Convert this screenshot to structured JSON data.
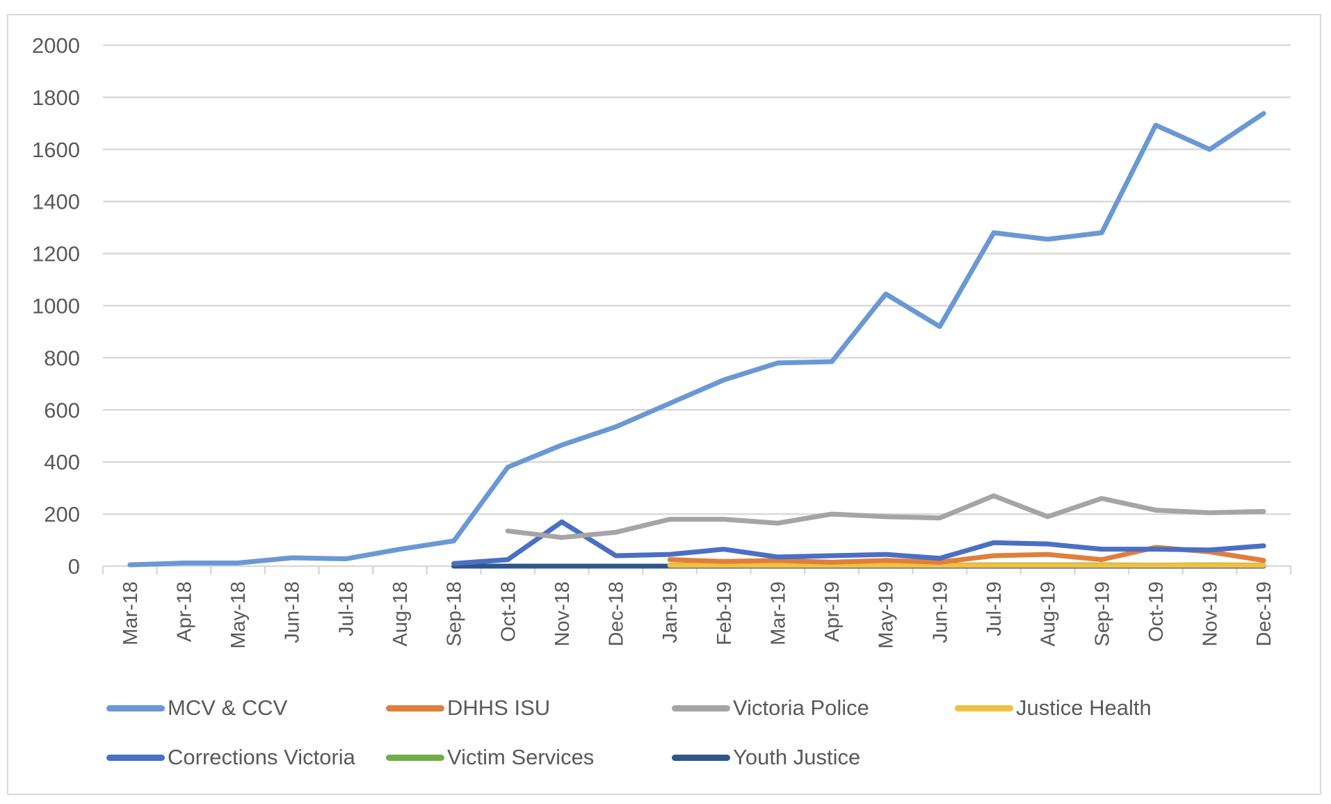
{
  "chart_data": {
    "type": "line",
    "title": "",
    "xlabel": "",
    "ylabel": "",
    "ylim": [
      0,
      2000
    ],
    "yticks": [
      "0",
      "200",
      "400",
      "600",
      "800",
      "1000",
      "1200",
      "1400",
      "1600",
      "1800",
      "2000"
    ],
    "grid": true,
    "legend_position": "bottom",
    "categories": [
      "Mar-18",
      "Apr-18",
      "May-18",
      "Jun-18",
      "Jul-18",
      "Aug-18",
      "Sep-18",
      "Oct-18",
      "Nov-18",
      "Dec-18",
      "Jan-19",
      "Feb-19",
      "Mar-19",
      "Apr-19",
      "May-19",
      "Jun-19",
      "Jul-19",
      "Aug-19",
      "Sep-19",
      "Oct-19",
      "Nov-19",
      "Dec-19"
    ],
    "series": [
      {
        "name": "MCV & CCV",
        "color": "#6a98d4",
        "values": [
          5,
          12,
          12,
          32,
          28,
          65,
          97,
          380,
          465,
          535,
          625,
          715,
          780,
          785,
          1045,
          920,
          1280,
          1255,
          1280,
          1693,
          1600,
          1738
        ]
      },
      {
        "name": "DHHS ISU",
        "color": "#e07e3c",
        "values": [
          null,
          null,
          null,
          null,
          null,
          null,
          null,
          null,
          null,
          null,
          25,
          18,
          22,
          15,
          22,
          15,
          40,
          45,
          25,
          72,
          55,
          22
        ]
      },
      {
        "name": "Victoria Police",
        "color": "#a5a5a5",
        "values": [
          null,
          null,
          null,
          null,
          null,
          null,
          null,
          135,
          110,
          130,
          180,
          180,
          165,
          200,
          190,
          185,
          270,
          190,
          260,
          215,
          205,
          210
        ]
      },
      {
        "name": "Justice Health",
        "color": "#f2c040",
        "values": [
          null,
          null,
          null,
          null,
          null,
          null,
          null,
          null,
          null,
          null,
          3,
          3,
          3,
          3,
          3,
          3,
          3,
          3,
          3,
          3,
          3,
          3
        ]
      },
      {
        "name": "Corrections Victoria",
        "color": "#4a6fc4",
        "values": [
          null,
          null,
          null,
          null,
          null,
          null,
          10,
          25,
          170,
          40,
          45,
          65,
          35,
          40,
          45,
          30,
          90,
          85,
          65,
          65,
          62,
          78
        ]
      },
      {
        "name": "Victim Services",
        "color": "#70ad47",
        "values": [
          null,
          null,
          null,
          null,
          null,
          null,
          null,
          null,
          null,
          null,
          4,
          4,
          4,
          4,
          4,
          4,
          5,
          5,
          5,
          4,
          5,
          4
        ]
      },
      {
        "name": "Youth Justice",
        "color": "#2f5689",
        "values": [
          null,
          null,
          null,
          null,
          null,
          null,
          0,
          0,
          0,
          0,
          0,
          0,
          0,
          0,
          0,
          0,
          0,
          0,
          0,
          0,
          0,
          0
        ]
      }
    ]
  }
}
